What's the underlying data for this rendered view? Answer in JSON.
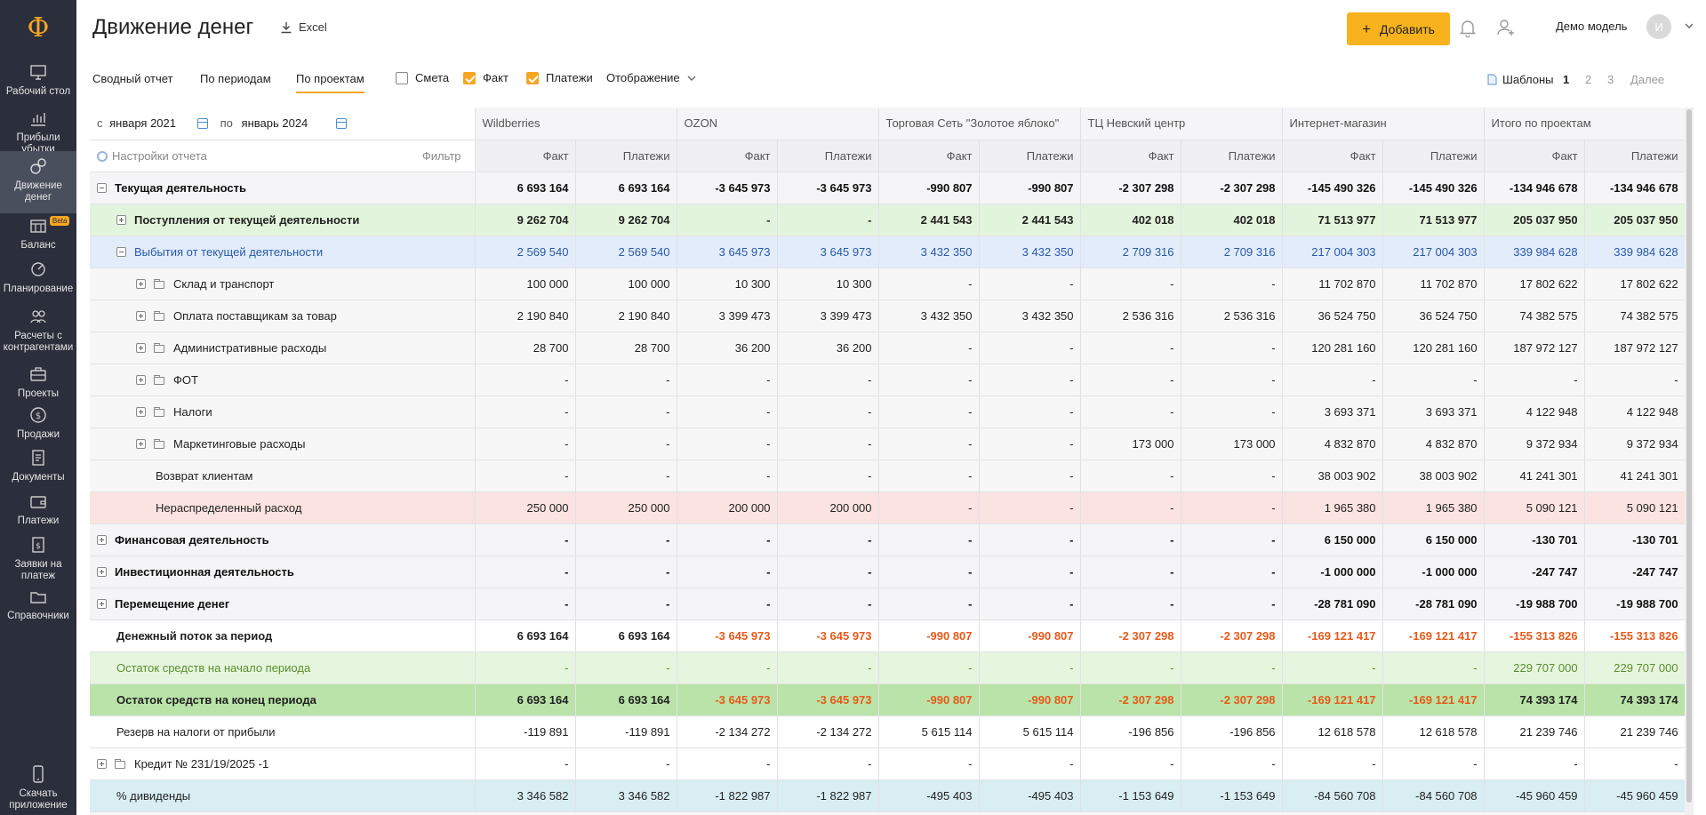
{
  "sidebar": {
    "logo": "Ф",
    "items": [
      {
        "label": "Рабочий стол",
        "icon": "desktop-icon"
      },
      {
        "label": "Прибыли убытки",
        "icon": "chart-icon"
      },
      {
        "label": "Движение денег",
        "icon": "money-flow-icon",
        "active": true
      },
      {
        "label": "Баланс",
        "icon": "balance-icon",
        "badge": "Beta"
      },
      {
        "label": "Планирование",
        "icon": "planning-icon"
      },
      {
        "label": "Расчеты с контрагентами",
        "icon": "contractors-icon"
      },
      {
        "label": "Проекты",
        "icon": "briefcase-icon"
      },
      {
        "label": "Продажи",
        "icon": "dollar-icon"
      },
      {
        "label": "Документы",
        "icon": "documents-icon"
      },
      {
        "label": "Платежи",
        "icon": "wallet-icon"
      },
      {
        "label": "Заявки на платеж",
        "icon": "request-icon"
      },
      {
        "label": "Справочники",
        "icon": "folder-icon"
      },
      {
        "label": "Скачать приложение",
        "icon": "phone-icon"
      }
    ]
  },
  "header": {
    "title": "Движение денег",
    "excel_label": "Excel",
    "add_label": "Добавить",
    "model_name": "Демо модель",
    "avatar_initial": "И"
  },
  "tabs": [
    {
      "label": "Сводный отчет"
    },
    {
      "label": "По периодам"
    },
    {
      "label": "По проектам",
      "active": true
    }
  ],
  "checkboxes": [
    {
      "label": "Смета",
      "checked": false
    },
    {
      "label": "Факт",
      "checked": true
    },
    {
      "label": "Платежи",
      "checked": true
    }
  ],
  "display_label": "Отображение",
  "templates": {
    "label": "Шаблоны",
    "items": [
      "1",
      "2",
      "3"
    ],
    "current": "1",
    "more": "Далее"
  },
  "period": {
    "from_label": "с",
    "from": "января 2021",
    "to_label": "по",
    "to": "январь 2024"
  },
  "settings_label": "Настройки отчета",
  "filter_label": "Фильтр",
  "projects": [
    "Wildberries",
    "OZON",
    "Торговая Сеть \"Золотое яблоко\"",
    "ТЦ Невский центр",
    "Интернет-магазин",
    "Итого по проектам"
  ],
  "subcolumns": [
    "Факт",
    "Платежи"
  ],
  "rows": [
    {
      "label": "Текущая деятельность",
      "toggle": "minus",
      "indent": 0,
      "style": "r-total",
      "values": [
        "6 693 164",
        "6 693 164",
        "-3 645 973",
        "-3 645 973",
        "-990 807",
        "-990 807",
        "-2 307 298",
        "-2 307 298",
        "-145 490 326",
        "-145 490 326",
        "-134 946 678",
        "-134 946 678"
      ]
    },
    {
      "label": "Поступления от текущей деятельности",
      "toggle": "plus",
      "indent": 1,
      "style": "r-green",
      "values": [
        "9 262 704",
        "9 262 704",
        "-",
        "-",
        "2 441 543",
        "2 441 543",
        "402 018",
        "402 018",
        "71 513 977",
        "71 513 977",
        "205 037 950",
        "205 037 950"
      ]
    },
    {
      "label": "Выбытия от текущей деятельности",
      "toggle": "minus",
      "indent": 1,
      "style": "r-blue",
      "values": [
        "2 569 540",
        "2 569 540",
        "3 645 973",
        "3 645 973",
        "3 432 350",
        "3 432 350",
        "2 709 316",
        "2 709 316",
        "217 004 303",
        "217 004 303",
        "339 984 628",
        "339 984 628"
      ]
    },
    {
      "label": "Склад и транспорт",
      "toggle": "plus",
      "folder": true,
      "indent": 2,
      "style": "r-plain",
      "values": [
        "100 000",
        "100 000",
        "10 300",
        "10 300",
        "-",
        "-",
        "-",
        "-",
        "11 702 870",
        "11 702 870",
        "17 802 622",
        "17 802 622"
      ]
    },
    {
      "label": "Оплата поставщикам за товар",
      "toggle": "plus",
      "folder": true,
      "indent": 2,
      "style": "r-plain",
      "values": [
        "2 190 840",
        "2 190 840",
        "3 399 473",
        "3 399 473",
        "3 432 350",
        "3 432 350",
        "2 536 316",
        "2 536 316",
        "36 524 750",
        "36 524 750",
        "74 382 575",
        "74 382 575"
      ]
    },
    {
      "label": "Административные расходы",
      "toggle": "plus",
      "folder": true,
      "indent": 2,
      "style": "r-plain",
      "values": [
        "28 700",
        "28 700",
        "36 200",
        "36 200",
        "-",
        "-",
        "-",
        "-",
        "120 281 160",
        "120 281 160",
        "187 972 127",
        "187 972 127"
      ]
    },
    {
      "label": "ФОТ",
      "toggle": "plus",
      "folder": true,
      "indent": 2,
      "style": "r-plain",
      "values": [
        "-",
        "-",
        "-",
        "-",
        "-",
        "-",
        "-",
        "-",
        "-",
        "-",
        "-",
        "-"
      ]
    },
    {
      "label": "Налоги",
      "toggle": "plus",
      "folder": true,
      "indent": 2,
      "style": "r-plain",
      "values": [
        "-",
        "-",
        "-",
        "-",
        "-",
        "-",
        "-",
        "-",
        "3 693 371",
        "3 693 371",
        "4 122 948",
        "4 122 948"
      ]
    },
    {
      "label": "Маркетинговые расходы",
      "toggle": "plus",
      "folder": true,
      "indent": 2,
      "style": "r-plain",
      "values": [
        "-",
        "-",
        "-",
        "-",
        "-",
        "-",
        "173 000",
        "173 000",
        "4 832 870",
        "4 832 870",
        "9 372 934",
        "9 372 934"
      ]
    },
    {
      "label": "Возврат клиентам",
      "indent": 3,
      "style": "r-plain",
      "values": [
        "-",
        "-",
        "-",
        "-",
        "-",
        "-",
        "-",
        "-",
        "38 003 902",
        "38 003 902",
        "41 241 301",
        "41 241 301"
      ]
    },
    {
      "label": "Нераспределенный расход",
      "indent": 3,
      "style": "r-pink",
      "values": [
        "250 000",
        "250 000",
        "200 000",
        "200 000",
        "-",
        "-",
        "-",
        "-",
        "1 965 380",
        "1 965 380",
        "5 090 121",
        "5 090 121"
      ]
    },
    {
      "label": "Финансовая деятельность",
      "toggle": "plus",
      "indent": 0,
      "style": "r-total",
      "values": [
        "-",
        "-",
        "-",
        "-",
        "-",
        "-",
        "-",
        "-",
        "6 150 000",
        "6 150 000",
        "-130 701",
        "-130 701"
      ]
    },
    {
      "label": "Инвестиционная деятельность",
      "toggle": "plus",
      "indent": 0,
      "style": "r-total",
      "values": [
        "-",
        "-",
        "-",
        "-",
        "-",
        "-",
        "-",
        "-",
        "-1 000 000",
        "-1 000 000",
        "-247 747",
        "-247 747"
      ]
    },
    {
      "label": "Перемещение денег",
      "toggle": "plus",
      "indent": 0,
      "style": "r-total",
      "values": [
        "-",
        "-",
        "-",
        "-",
        "-",
        "-",
        "-",
        "-",
        "-28 781 090",
        "-28 781 090",
        "-19 988 700",
        "-19 988 700"
      ]
    },
    {
      "label": "Денежный поток за период",
      "indent": 0,
      "notoggle": true,
      "style": "r-white-b",
      "negcolor": true,
      "values": [
        "6 693 164",
        "6 693 164",
        "-3 645 973",
        "-3 645 973",
        "-990 807",
        "-990 807",
        "-2 307 298",
        "-2 307 298",
        "-169 121 417",
        "-169 121 417",
        "-155 313 826",
        "-155 313 826"
      ]
    },
    {
      "label": "Остаток средств на начало периода",
      "indent": 0,
      "notoggle": true,
      "style": "r-lgreen",
      "values": [
        "-",
        "-",
        "-",
        "-",
        "-",
        "-",
        "-",
        "-",
        "-",
        "-",
        "229 707 000",
        "229 707 000"
      ]
    },
    {
      "label": "Остаток средств на конец периода",
      "indent": 0,
      "notoggle": true,
      "style": "r-dgreen",
      "negcolor": true,
      "values": [
        "6 693 164",
        "6 693 164",
        "-3 645 973",
        "-3 645 973",
        "-990 807",
        "-990 807",
        "-2 307 298",
        "-2 307 298",
        "-169 121 417",
        "-169 121 417",
        "74 393 174",
        "74 393 174"
      ]
    },
    {
      "label": "Резерв на налоги от прибыли",
      "indent": 0,
      "notoggle": true,
      "style": "r-white",
      "values": [
        "-119 891",
        "-119 891",
        "-2 134 272",
        "-2 134 272",
        "5 615 114",
        "5 615 114",
        "-196 856",
        "-196 856",
        "12 618 578",
        "12 618 578",
        "21 239 746",
        "21 239 746"
      ]
    },
    {
      "label": "Кредит № 231/19/2025 -1",
      "toggle": "plus",
      "folder": true,
      "indent": 0,
      "style": "r-white",
      "values": [
        "-",
        "-",
        "-",
        "-",
        "-",
        "-",
        "-",
        "-",
        "-",
        "-",
        "-",
        "-"
      ]
    },
    {
      "label": "% дивиденды",
      "indent": 0,
      "notoggle": true,
      "style": "r-teal",
      "values": [
        "3 346 582",
        "3 346 582",
        "-1 822 987",
        "-1 822 987",
        "-495 403",
        "-495 403",
        "-1 153 649",
        "-1 153 649",
        "-84 560 708",
        "-84 560 708",
        "-45 960 459",
        "-45 960 459"
      ]
    }
  ]
}
